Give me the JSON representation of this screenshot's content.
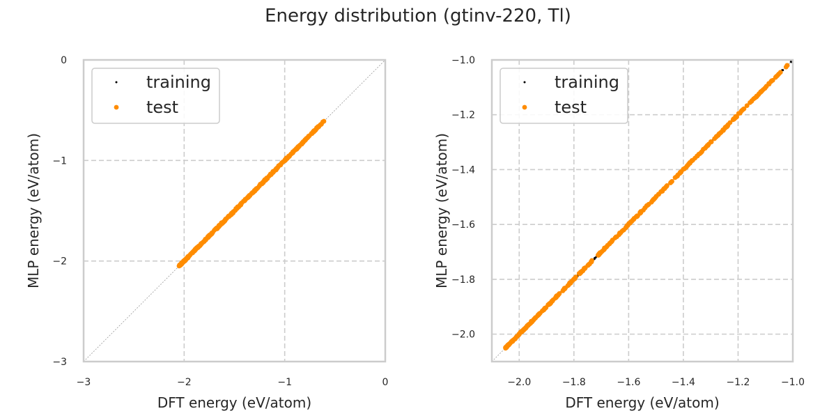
{
  "title": "Energy distribution (gtinv-220, Tl)",
  "colors": {
    "training": "#000000",
    "test": "#ff8c00",
    "grid": "#cccccc",
    "frame": "#cccccc",
    "diagonal": "#999999"
  },
  "chart_data": [
    {
      "type": "scatter",
      "xlabel": "DFT energy (eV/atom)",
      "ylabel": "MLP energy (eV/atom)",
      "xlim": [
        -3,
        0
      ],
      "ylim": [
        -3,
        0
      ],
      "xticks": [
        -3,
        -2,
        -1,
        0
      ],
      "yticks": [
        -3,
        -2,
        -1,
        0
      ],
      "xtick_labels": [
        "−3",
        "−2",
        "−1",
        "0"
      ],
      "ytick_labels": [
        "−3",
        "−2",
        "−1",
        "0"
      ],
      "grid": true,
      "diagonal": true,
      "legend": "top-left",
      "series": [
        {
          "name": "training",
          "marker": "dot",
          "range": [
            -2.05,
            -0.63
          ]
        },
        {
          "name": "test",
          "marker": "circle",
          "range": [
            -2.05,
            -0.61
          ]
        }
      ]
    },
    {
      "type": "scatter",
      "xlabel": "DFT energy (eV/atom)",
      "ylabel": "MLP energy (eV/atom)",
      "xlim": [
        -2.1,
        -1.0
      ],
      "ylim": [
        -2.1,
        -1.0
      ],
      "xticks": [
        -2.0,
        -1.8,
        -1.6,
        -1.4,
        -1.2,
        -1.0
      ],
      "yticks": [
        -2.0,
        -1.8,
        -1.6,
        -1.4,
        -1.2,
        -1.0
      ],
      "xtick_labels": [
        "−2.0",
        "−1.8",
        "−1.6",
        "−1.4",
        "−1.2",
        "−1.0"
      ],
      "ytick_labels": [
        "−2.0",
        "−1.8",
        "−1.6",
        "−1.4",
        "−1.2",
        "−1.0"
      ],
      "grid": true,
      "diagonal": true,
      "legend": "top-left",
      "series": [
        {
          "name": "training",
          "marker": "dot",
          "range": [
            -2.05,
            -1.0
          ]
        },
        {
          "name": "test",
          "marker": "circle",
          "range": [
            -2.05,
            -1.02
          ]
        }
      ]
    }
  ]
}
